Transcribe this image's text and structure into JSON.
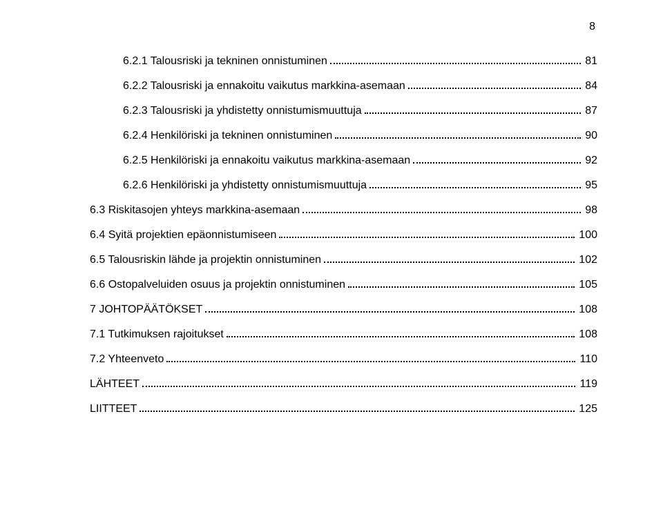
{
  "page_number": "8",
  "toc": [
    {
      "level": 2,
      "title": "6.2.1 Talousriski ja tekninen onnistuminen",
      "page": "81"
    },
    {
      "level": 2,
      "title": "6.2.2 Talousriski ja ennakoitu vaikutus markkina-asemaan",
      "page": "84"
    },
    {
      "level": 2,
      "title": "6.2.3 Talousriski ja yhdistetty onnistumismuuttuja",
      "page": "87"
    },
    {
      "level": 2,
      "title": "6.2.4 Henkilöriski ja tekninen onnistuminen",
      "page": "90"
    },
    {
      "level": 2,
      "title": "6.2.5 Henkilöriski ja ennakoitu vaikutus markkina-asemaan",
      "page": "92"
    },
    {
      "level": 2,
      "title": "6.2.6 Henkilöriski ja yhdistetty onnistumismuuttuja",
      "page": "95"
    },
    {
      "level": 1,
      "title": "6.3 Riskitasojen yhteys markkina-asemaan",
      "page": "98"
    },
    {
      "level": 1,
      "title": "6.4 Syitä projektien epäonnistumiseen",
      "page": "100"
    },
    {
      "level": 1,
      "title": "6.5 Talousriskin lähde ja projektin onnistuminen",
      "page": "102"
    },
    {
      "level": 1,
      "title": "6.6 Ostopalveluiden osuus ja projektin onnistuminen",
      "page": "105"
    },
    {
      "level": 0,
      "title": "7 JOHTOPÄÄTÖKSET",
      "page": "108"
    },
    {
      "level": 1,
      "title": "7.1 Tutkimuksen rajoitukset",
      "page": "108"
    },
    {
      "level": 1,
      "title": "7.2 Yhteenveto",
      "page": "110"
    },
    {
      "level": 0,
      "title": "LÄHTEET",
      "page": "119"
    },
    {
      "level": 0,
      "title": "LIITTEET",
      "page": "125"
    }
  ]
}
